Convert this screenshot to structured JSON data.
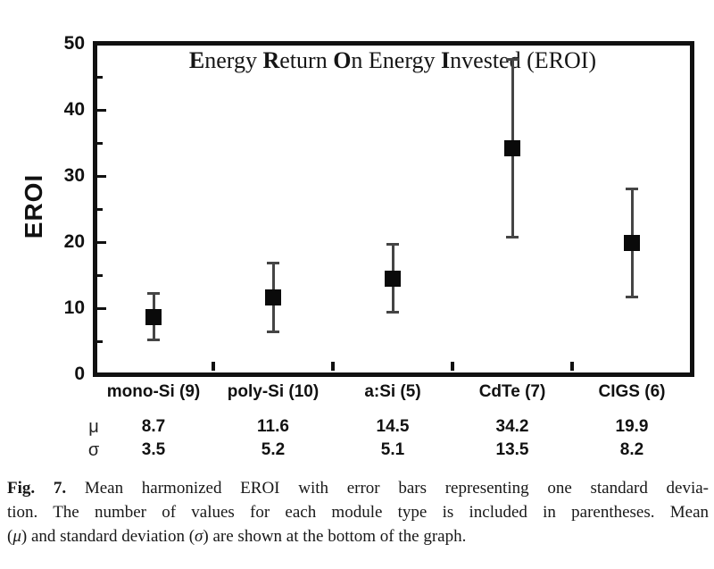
{
  "figure": {
    "caption": {
      "fig_label": "Fig. 7.",
      "line1_rest": " Mean harmonized EROI with error bars representing one standard devia-",
      "line2": "tion. The number of values for each module type is included in parentheses. Mean",
      "line3": {
        "open": "(",
        "mu": "μ",
        "mid": ") and standard deviation (",
        "sigma": "σ",
        "rest": ") are shown at the bottom of the graph."
      }
    }
  },
  "chart_data": {
    "type": "scatter",
    "title": "Energy Return On Energy Invested (EROI)",
    "title_parts": [
      "E",
      "nergy ",
      "R",
      "eturn ",
      "O",
      "n Energy ",
      "I",
      "nvested (EROI)"
    ],
    "ylabel": "EROI",
    "xlabel": "",
    "ylim": [
      0,
      50
    ],
    "y_major_ticks": [
      0,
      10,
      20,
      30,
      40,
      50
    ],
    "y_minor_ticks": [
      5,
      15,
      25,
      35,
      45
    ],
    "grid": false,
    "legend": "none",
    "categories": [
      "mono-Si (9)",
      "poly-Si (10)",
      "a:Si (5)",
      "CdTe (7)",
      "CIGS (6)"
    ],
    "series": [
      {
        "name": "Mean harmonized EROI",
        "marker": "square",
        "mean": [
          8.7,
          11.6,
          14.5,
          34.2,
          19.9
        ],
        "stdev": [
          3.5,
          5.2,
          5.1,
          13.5,
          8.2
        ],
        "error_bars": "one standard deviation"
      }
    ],
    "mu_row": {
      "symbol": "μ",
      "values": [
        "8.7",
        "11.6",
        "14.5",
        "34.2",
        "19.9"
      ]
    },
    "sigma_row": {
      "symbol": "σ",
      "values": [
        "3.5",
        "5.2",
        "5.1",
        "13.5",
        "8.2"
      ]
    },
    "colors": {
      "marker": "#0a0a0a",
      "error_bar": "#454545",
      "axis": "#111111",
      "background": "#ffffff"
    }
  }
}
